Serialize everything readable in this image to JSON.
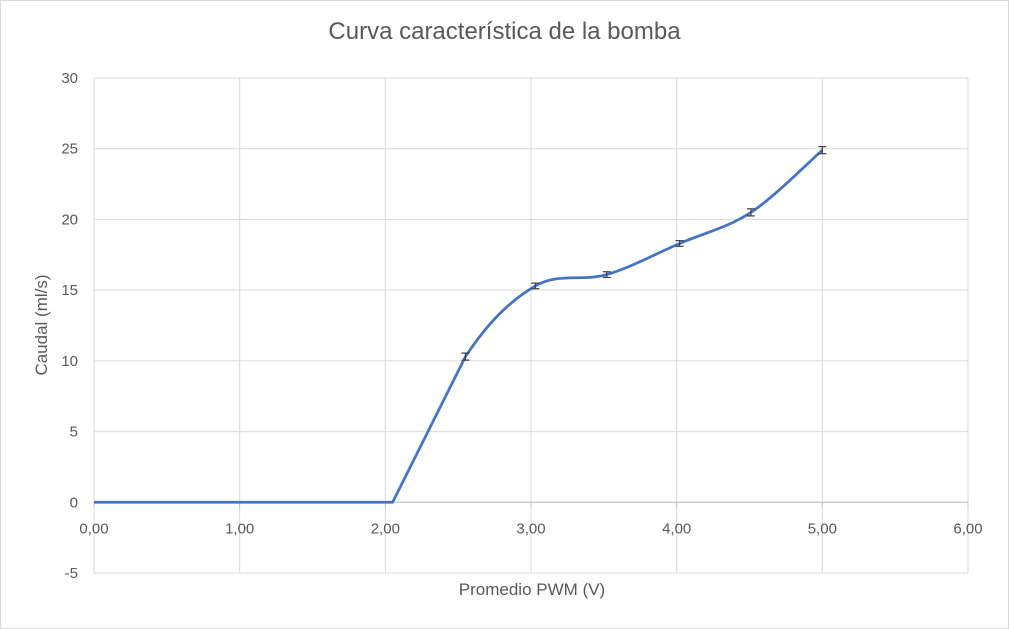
{
  "chart_data": {
    "type": "line",
    "title": "Curva característica de la bomba",
    "xlabel": "Promedio PWM (V)",
    "ylabel": "Caudal (ml/s)",
    "xlim": [
      0,
      6
    ],
    "ylim": [
      -5,
      30
    ],
    "x_ticks": [
      "0,00",
      "1,00",
      "2,00",
      "3,00",
      "4,00",
      "5,00",
      "6,00"
    ],
    "y_ticks": [
      "-5",
      "0",
      "5",
      "10",
      "15",
      "20",
      "25",
      "30"
    ],
    "grid": true,
    "legend": "none",
    "series": [
      {
        "color": "#4472c4",
        "smooth": true,
        "points": [
          {
            "x": 0.0,
            "y": 0
          },
          {
            "x": 1.0,
            "y": 0
          },
          {
            "x": 2.05,
            "y": 0
          },
          {
            "x": 2.55,
            "y": 10.3
          },
          {
            "x": 3.03,
            "y": 15.3
          },
          {
            "x": 3.52,
            "y": 16.1
          },
          {
            "x": 4.02,
            "y": 18.3
          },
          {
            "x": 4.51,
            "y": 20.5
          },
          {
            "x": 5.0,
            "y": 24.9
          }
        ],
        "error_bars": [
          {
            "x": 2.55,
            "y": 10.3,
            "err": 0.25
          },
          {
            "x": 3.03,
            "y": 15.3,
            "err": 0.2
          },
          {
            "x": 3.52,
            "y": 16.1,
            "err": 0.2
          },
          {
            "x": 4.02,
            "y": 18.3,
            "err": 0.2
          },
          {
            "x": 4.51,
            "y": 20.5,
            "err": 0.25
          },
          {
            "x": 5.0,
            "y": 24.9,
            "err": 0.25
          }
        ]
      }
    ]
  }
}
